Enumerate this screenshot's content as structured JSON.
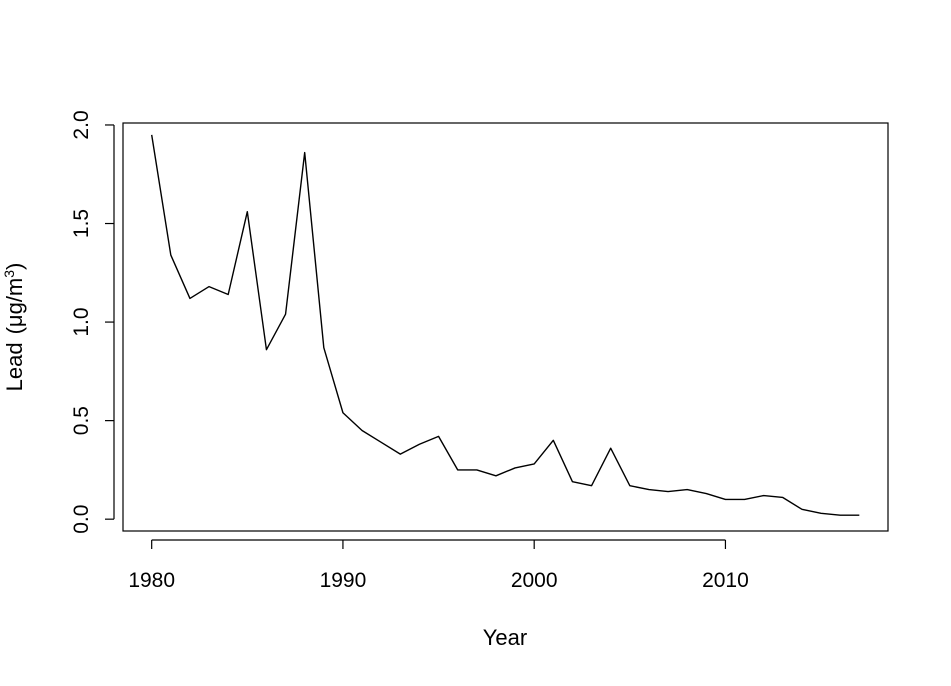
{
  "chart_data": {
    "type": "line",
    "title": "",
    "xlabel": "Year",
    "ylabel": "Lead",
    "ylabel_unit_prefix": "(μg/m",
    "ylabel_unit_sup": "3",
    "ylabel_unit_suffix": ")",
    "xlim": [
      1978.5,
      2018.5
    ],
    "ylim": [
      -0.06,
      2.01
    ],
    "x_ticks": [
      1980,
      1990,
      2000,
      2010
    ],
    "x_tick_labels": [
      "1980",
      "1990",
      "2000",
      "2010"
    ],
    "y_ticks": [
      0.0,
      0.5,
      1.0,
      1.5,
      2.0
    ],
    "y_tick_labels": [
      "0.0",
      "0.5",
      "1.0",
      "1.5",
      "2.0"
    ],
    "grid": false,
    "line_color": "#000000",
    "x": [
      1980,
      1981,
      1982,
      1983,
      1984,
      1985,
      1986,
      1987,
      1988,
      1989,
      1990,
      1991,
      1992,
      1993,
      1994,
      1995,
      1996,
      1997,
      1998,
      1999,
      2000,
      2001,
      2002,
      2003,
      2004,
      2005,
      2006,
      2007,
      2008,
      2009,
      2010,
      2011,
      2012,
      2013,
      2014,
      2015,
      2016,
      2017
    ],
    "y": [
      1.95,
      1.34,
      1.12,
      1.18,
      1.14,
      1.56,
      0.86,
      1.04,
      1.86,
      0.87,
      0.54,
      0.45,
      0.39,
      0.33,
      0.38,
      0.42,
      0.25,
      0.25,
      0.22,
      0.26,
      0.28,
      0.4,
      0.19,
      0.17,
      0.36,
      0.17,
      0.15,
      0.14,
      0.15,
      0.13,
      0.1,
      0.1,
      0.12,
      0.11,
      0.05,
      0.03,
      0.02,
      0.02
    ]
  }
}
